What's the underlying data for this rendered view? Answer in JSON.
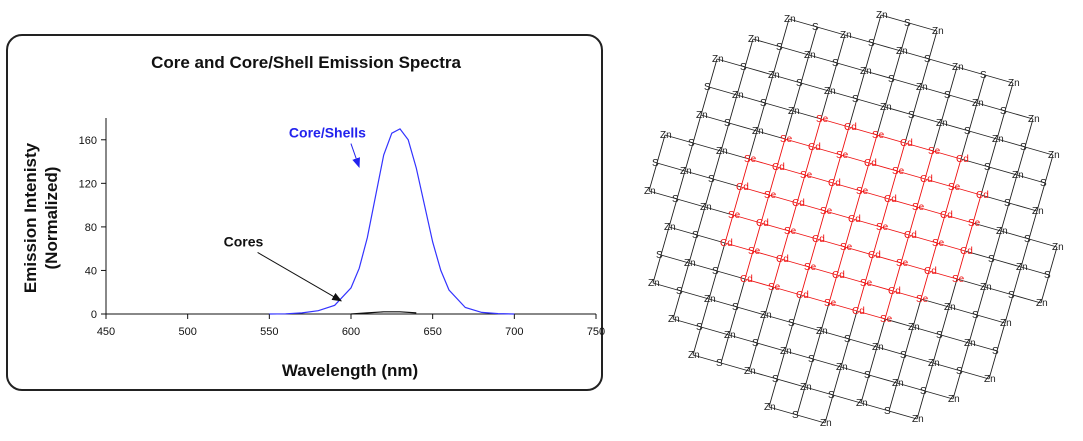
{
  "chart_data": {
    "type": "line",
    "title": "Core and Core/Shell Emission Spectra",
    "xlabel": "Wavelength (nm)",
    "ylabel_line1": "Emission Intenisty",
    "ylabel_line2": "(Normalized)",
    "xlim": [
      450,
      750
    ],
    "ylim": [
      0,
      180
    ],
    "xticks": [
      450,
      500,
      550,
      600,
      650,
      700,
      750
    ],
    "yticks": [
      0,
      40,
      80,
      120,
      160
    ],
    "grid": false,
    "series": [
      {
        "name": "Core/Shells",
        "color": "#3333ff",
        "x": [
          550,
          560,
          570,
          580,
          590,
          600,
          605,
          610,
          615,
          620,
          625,
          630,
          635,
          640,
          645,
          650,
          655,
          660,
          670,
          680,
          690,
          700
        ],
        "y": [
          0,
          0.2,
          1,
          3,
          8,
          24,
          42,
          70,
          108,
          146,
          166,
          170,
          160,
          134,
          100,
          66,
          40,
          22,
          6,
          1.5,
          0.4,
          0
        ]
      },
      {
        "name": "Cores",
        "color": "#111111",
        "x": [
          600,
          610,
          620,
          630,
          640
        ],
        "y": [
          0,
          1,
          2,
          2,
          1
        ]
      }
    ],
    "annotations": [
      {
        "text": "Core/Shells",
        "color": "#2222ee",
        "text_x": 562,
        "text_y": 162,
        "arrow_to": [
          605,
          135
        ]
      },
      {
        "text": "Cores",
        "color": "#111111",
        "text_x": 522,
        "text_y": 62,
        "arrow_to": [
          594,
          12
        ]
      }
    ]
  },
  "lattice": {
    "shell_atoms": [
      "Zn",
      "S"
    ],
    "core_atoms": [
      "Cd",
      "Se"
    ],
    "shell_color": "#222222",
    "core_color": "#ee1111"
  }
}
